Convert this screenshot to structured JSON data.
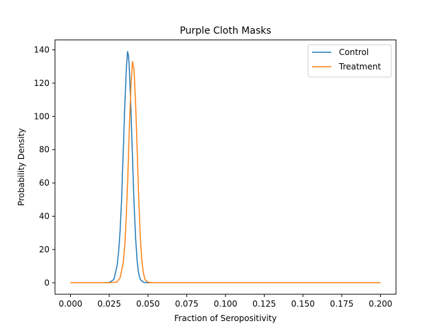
{
  "chart_data": {
    "type": "line",
    "title": "Purple Cloth Masks",
    "xlabel": "Fraction of Seropositivity",
    "ylabel": "Probability Density",
    "xlim": [
      -0.01,
      0.21
    ],
    "ylim": [
      -6.9,
      146
    ],
    "xticks": [
      0.0,
      0.025,
      0.05,
      0.075,
      0.1,
      0.125,
      0.15,
      0.175,
      0.2
    ],
    "xtick_labels": [
      "0.000",
      "0.025",
      "0.050",
      "0.075",
      "0.100",
      "0.125",
      "0.150",
      "0.175",
      "0.200"
    ],
    "yticks": [
      0,
      20,
      40,
      60,
      80,
      100,
      120,
      140
    ],
    "ytick_labels": [
      "0",
      "20",
      "40",
      "60",
      "80",
      "100",
      "120",
      "140"
    ],
    "grid": false,
    "legend_position": "upper right",
    "series": [
      {
        "name": "Control",
        "color": "#1f77b4",
        "x": [
          0.0,
          0.02,
          0.025,
          0.028,
          0.03,
          0.031,
          0.032,
          0.033,
          0.034,
          0.035,
          0.036,
          0.0368,
          0.0375,
          0.038,
          0.039,
          0.04,
          0.041,
          0.042,
          0.043,
          0.044,
          0.045,
          0.047,
          0.05,
          0.055,
          0.2
        ],
        "y": [
          0.0,
          0.0,
          0.2,
          2.0,
          10.0,
          18.0,
          31.0,
          51.0,
          78.0,
          106.0,
          128.0,
          139.0,
          136.0,
          128.0,
          104.0,
          75.0,
          48.0,
          27.0,
          13.0,
          5.5,
          2.0,
          0.3,
          0.0,
          0.0,
          0.0
        ]
      },
      {
        "name": "Treatment",
        "color": "#ff7f0e",
        "x": [
          0.0,
          0.025,
          0.03,
          0.032,
          0.034,
          0.035,
          0.036,
          0.037,
          0.038,
          0.039,
          0.04,
          0.041,
          0.042,
          0.043,
          0.044,
          0.045,
          0.046,
          0.047,
          0.048,
          0.05,
          0.053,
          0.2
        ],
        "y": [
          0.0,
          0.0,
          0.5,
          3.0,
          12.0,
          22.0,
          40.0,
          64.0,
          94.0,
          118.0,
          133.0,
          128.0,
          108.0,
          80.0,
          51.0,
          28.0,
          14.0,
          6.0,
          2.0,
          0.3,
          0.0,
          0.0
        ]
      }
    ]
  }
}
